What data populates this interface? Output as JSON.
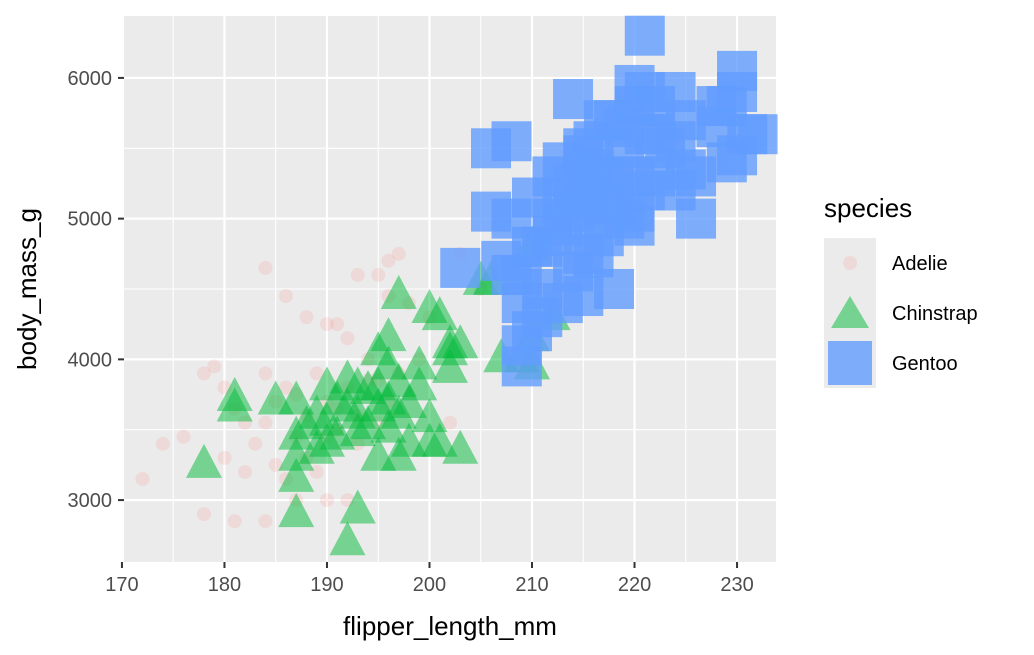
{
  "chart_data": {
    "type": "scatter",
    "xlabel": "flipper_length_mm",
    "ylabel": "body_mass_g",
    "xlim": [
      170.2,
      233.8
    ],
    "ylim": [
      2560,
      6440
    ],
    "x_ticks": [
      170,
      180,
      190,
      200,
      210,
      220,
      230
    ],
    "y_ticks": [
      3000,
      4000,
      5000,
      6000
    ],
    "grid": true,
    "legend": {
      "title": "species",
      "position": "right",
      "entries": [
        "Adelie",
        "Chinstrap",
        "Gentoo"
      ]
    },
    "series": [
      {
        "name": "Adelie",
        "shape": "circle",
        "color": "#F8766D",
        "opacity": 0.15,
        "points": [
          [
            172,
            3150
          ],
          [
            174,
            3400
          ],
          [
            176,
            3450
          ],
          [
            178,
            2900
          ],
          [
            178,
            3900
          ],
          [
            179,
            3950
          ],
          [
            180,
            3800
          ],
          [
            180,
            3300
          ],
          [
            181,
            2850
          ],
          [
            181,
            3650
          ],
          [
            182,
            3200
          ],
          [
            182,
            3550
          ],
          [
            183,
            3400
          ],
          [
            184,
            3900
          ],
          [
            184,
            3550
          ],
          [
            184,
            4650
          ],
          [
            184,
            2850
          ],
          [
            185,
            3700
          ],
          [
            185,
            3250
          ],
          [
            186,
            3150
          ],
          [
            186,
            4450
          ],
          [
            186,
            3800
          ],
          [
            187,
            3450
          ],
          [
            187,
            3000
          ],
          [
            187,
            3750
          ],
          [
            188,
            3300
          ],
          [
            188,
            3600
          ],
          [
            188,
            4300
          ],
          [
            189,
            3200
          ],
          [
            189,
            3900
          ],
          [
            190,
            3450
          ],
          [
            190,
            4250
          ],
          [
            190,
            3700
          ],
          [
            190,
            3000
          ],
          [
            191,
            4250
          ],
          [
            191,
            3650
          ],
          [
            191,
            3500
          ],
          [
            192,
            4150
          ],
          [
            192,
            3000
          ],
          [
            192,
            3800
          ],
          [
            193,
            4600
          ],
          [
            193,
            3600
          ],
          [
            193,
            3400
          ],
          [
            194,
            4000
          ],
          [
            194,
            3850
          ],
          [
            195,
            4600
          ],
          [
            195,
            3550
          ],
          [
            195,
            3850
          ],
          [
            196,
            4700
          ],
          [
            196,
            3700
          ],
          [
            196,
            4450
          ],
          [
            197,
            4750
          ],
          [
            197,
            3900
          ],
          [
            198,
            4400
          ],
          [
            199,
            4000
          ],
          [
            200,
            4300
          ],
          [
            202,
            3550
          ],
          [
            203,
            4750
          ],
          [
            205,
            4500
          ],
          [
            210,
            4250
          ]
        ]
      },
      {
        "name": "Chinstrap",
        "shape": "triangle",
        "color": "#00BA38",
        "opacity": 0.5,
        "points": [
          [
            178,
            3250
          ],
          [
            181,
            3650
          ],
          [
            181,
            3725
          ],
          [
            185,
            3700
          ],
          [
            187,
            3300
          ],
          [
            187,
            3450
          ],
          [
            187,
            2900
          ],
          [
            187,
            3150
          ],
          [
            187,
            3700
          ],
          [
            188,
            3525
          ],
          [
            189,
            3350
          ],
          [
            189,
            3600
          ],
          [
            190,
            3400
          ],
          [
            190,
            3800
          ],
          [
            190,
            3550
          ],
          [
            191,
            3700
          ],
          [
            191,
            3450
          ],
          [
            192,
            2700
          ],
          [
            192,
            3650
          ],
          [
            192,
            3850
          ],
          [
            193,
            3475
          ],
          [
            193,
            3800
          ],
          [
            193,
            3600
          ],
          [
            193,
            2925
          ],
          [
            194,
            3775
          ],
          [
            194,
            3525
          ],
          [
            195,
            3650
          ],
          [
            195,
            3800
          ],
          [
            195,
            3300
          ],
          [
            195,
            4050
          ],
          [
            196,
            3950
          ],
          [
            196,
            3700
          ],
          [
            196,
            4150
          ],
          [
            196,
            3500
          ],
          [
            197,
            3600
          ],
          [
            197,
            3825
          ],
          [
            197,
            4450
          ],
          [
            197,
            3300
          ],
          [
            198,
            3400
          ],
          [
            198,
            3675
          ],
          [
            199,
            3950
          ],
          [
            199,
            3800
          ],
          [
            200,
            3575
          ],
          [
            200,
            3400
          ],
          [
            200,
            4350
          ],
          [
            201,
            4300
          ],
          [
            201,
            3400
          ],
          [
            202,
            4100
          ],
          [
            202,
            3925
          ],
          [
            202,
            4050
          ],
          [
            203,
            4100
          ],
          [
            203,
            3350
          ],
          [
            205,
            4550
          ],
          [
            206,
            4550
          ],
          [
            207,
            4000
          ],
          [
            209,
            4000
          ],
          [
            210,
            4800
          ],
          [
            210,
            3950
          ],
          [
            210,
            4150
          ],
          [
            212,
            4300
          ]
        ]
      },
      {
        "name": "Gentoo",
        "shape": "square",
        "color": "#619CFF",
        "opacity": 0.8,
        "points": [
          [
            203,
            4650
          ],
          [
            206,
            5050
          ],
          [
            206,
            5500
          ],
          [
            207,
            4700
          ],
          [
            208,
            4600
          ],
          [
            208,
            5550
          ],
          [
            208,
            5000
          ],
          [
            209,
            4100
          ],
          [
            209,
            4400
          ],
          [
            209,
            3950
          ],
          [
            209,
            4600
          ],
          [
            210,
            4200
          ],
          [
            210,
            4800
          ],
          [
            210,
            5150
          ],
          [
            211,
            4500
          ],
          [
            211,
            4300
          ],
          [
            211,
            4800
          ],
          [
            212,
            5300
          ],
          [
            212,
            4875
          ],
          [
            212,
            5000
          ],
          [
            213,
            4950
          ],
          [
            213,
            4400
          ],
          [
            213,
            5400
          ],
          [
            214,
            5050
          ],
          [
            214,
            4625
          ],
          [
            214,
            5250
          ],
          [
            214,
            5850
          ],
          [
            215,
            4750
          ],
          [
            215,
            5150
          ],
          [
            215,
            5450
          ],
          [
            215,
            4450
          ],
          [
            216,
            5000
          ],
          [
            216,
            5550
          ],
          [
            216,
            4725
          ],
          [
            216,
            5200
          ],
          [
            217,
            5700
          ],
          [
            217,
            4875
          ],
          [
            217,
            5100
          ],
          [
            218,
            5700
          ],
          [
            218,
            5100
          ],
          [
            218,
            4500
          ],
          [
            219,
            5650
          ],
          [
            219,
            5000
          ],
          [
            219,
            5500
          ],
          [
            220,
            5950
          ],
          [
            220,
            5800
          ],
          [
            220,
            5300
          ],
          [
            220,
            4950
          ],
          [
            221,
            6300
          ],
          [
            221,
            5600
          ],
          [
            221,
            5200
          ],
          [
            221,
            5900
          ],
          [
            222,
            5300
          ],
          [
            222,
            5800
          ],
          [
            223,
            5500
          ],
          [
            224,
            5550
          ],
          [
            224,
            5900
          ],
          [
            225,
            5350
          ],
          [
            225,
            5700
          ],
          [
            226,
            5300
          ],
          [
            228,
            5800
          ],
          [
            228,
            5650
          ],
          [
            229,
            5800
          ],
          [
            229,
            5400
          ],
          [
            230,
            5900
          ],
          [
            230,
            6050
          ],
          [
            230,
            5450
          ],
          [
            231,
            5600
          ],
          [
            232,
            5600
          ],
          [
            220,
            5050
          ],
          [
            218,
            5300
          ],
          [
            215,
            5500
          ],
          [
            217,
            5300
          ],
          [
            213,
            5150
          ],
          [
            216,
            5350
          ],
          [
            222,
            5600
          ],
          [
            224,
            5200
          ],
          [
            226,
            5000
          ]
        ]
      }
    ]
  }
}
